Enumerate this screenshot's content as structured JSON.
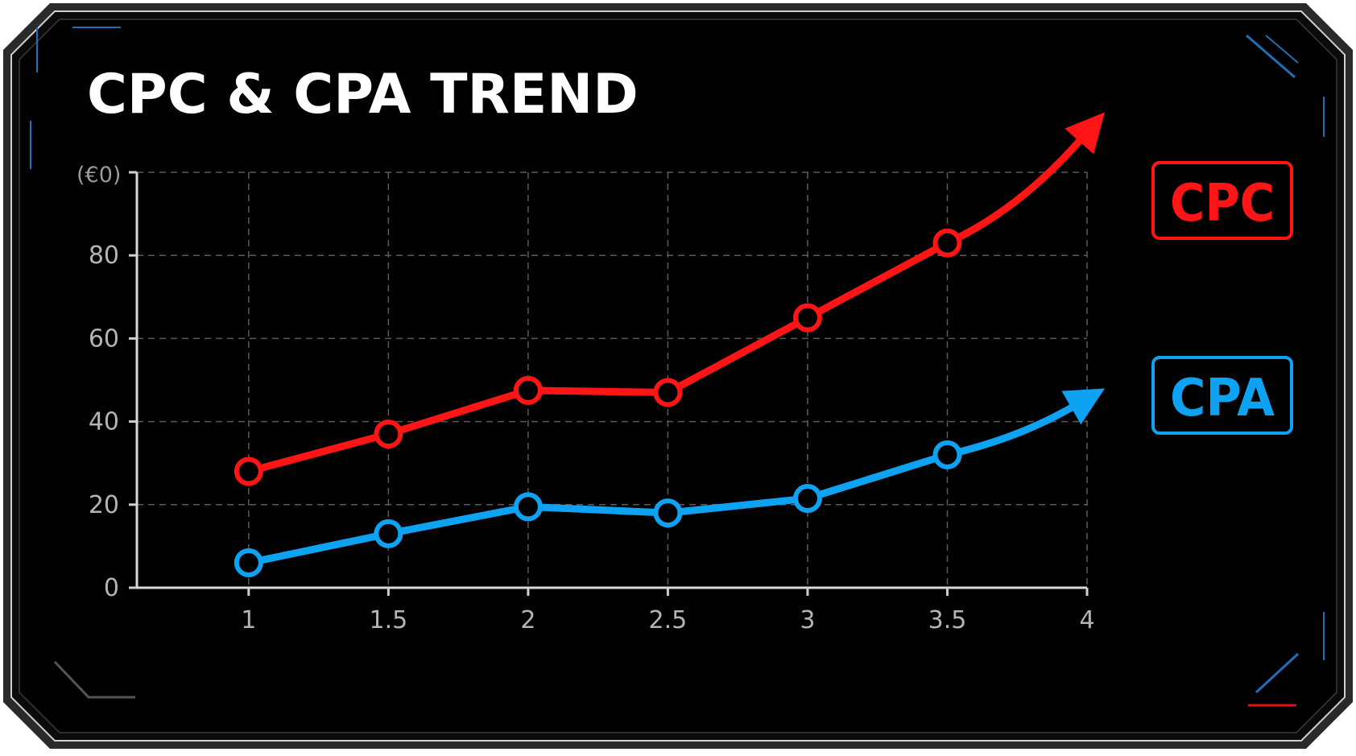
{
  "chart_data": {
    "type": "line",
    "title": "CPC & CPA TREND",
    "ylabel": "(€0)",
    "xlabel": "",
    "x": [
      1,
      1.5,
      2,
      2.5,
      3,
      3.5
    ],
    "x_ticks": [
      "1",
      "1.5",
      "2",
      "2.5",
      "3",
      "3.5",
      "4"
    ],
    "y_ticks": [
      "0",
      "20",
      "40",
      "60",
      "80"
    ],
    "ylim": [
      0,
      100
    ],
    "grid": true,
    "legend_position": "right",
    "series": [
      {
        "name": "CPC",
        "color": "#ff1515",
        "values": [
          28,
          37,
          47.5,
          47,
          65,
          83
        ]
      },
      {
        "name": "CPA",
        "color": "#0ea2f2",
        "values": [
          6,
          13,
          19.5,
          18,
          21.5,
          32
        ]
      }
    ],
    "background": "#000000",
    "frame_color": "#1a1a1a"
  }
}
